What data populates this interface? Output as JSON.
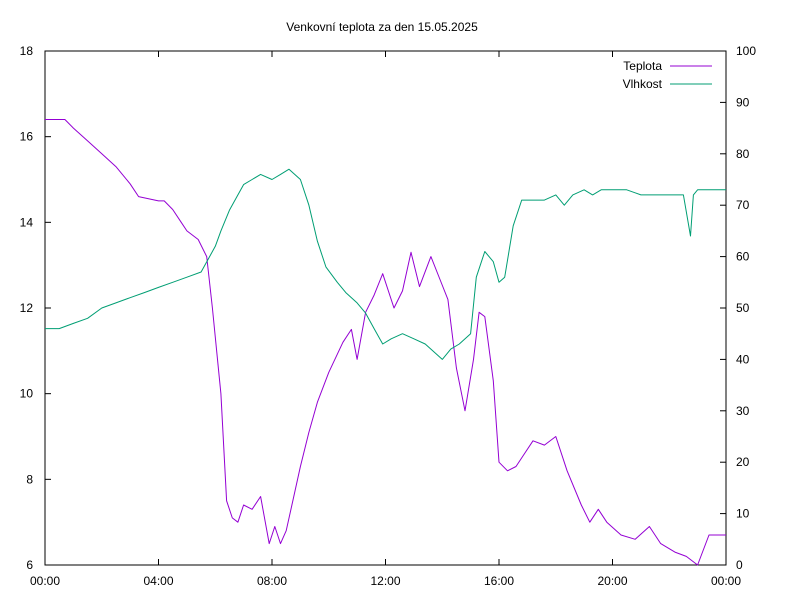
{
  "chart_data": {
    "type": "line",
    "title": "Venkovní teplota za den 15.05.2025",
    "x_tick_labels": [
      "00:00",
      "04:00",
      "08:00",
      "12:00",
      "16:00",
      "20:00",
      "00:00"
    ],
    "x_range_hours": [
      0,
      24
    ],
    "y_left": {
      "range": [
        6,
        18
      ],
      "ticks": [
        6,
        8,
        10,
        12,
        14,
        16,
        18
      ]
    },
    "y_right": {
      "range": [
        0,
        100
      ],
      "ticks": [
        0,
        10,
        20,
        30,
        40,
        50,
        60,
        70,
        80,
        90,
        100
      ]
    },
    "grid": false,
    "legend_position": "top-right",
    "series": [
      {
        "name": "Teplota",
        "axis": "left",
        "color": "#9400d3",
        "x": [
          0,
          0.7,
          1.0,
          1.5,
          2.0,
          2.5,
          3.0,
          3.3,
          4.0,
          4.2,
          4.5,
          4.8,
          5.0,
          5.4,
          5.7,
          5.9,
          6.2,
          6.4,
          6.6,
          6.8,
          7.0,
          7.3,
          7.6,
          7.9,
          8.1,
          8.3,
          8.5,
          8.7,
          9.0,
          9.3,
          9.6,
          10.0,
          10.5,
          10.8,
          11.0,
          11.3,
          11.6,
          11.9,
          12.3,
          12.6,
          12.9,
          13.2,
          13.6,
          13.9,
          14.2,
          14.5,
          14.8,
          15.1,
          15.3,
          15.5,
          15.8,
          16.0,
          16.3,
          16.6,
          16.9,
          17.2,
          17.6,
          18.0,
          18.4,
          18.9,
          19.2,
          19.5,
          19.8,
          20.3,
          20.8,
          21.3,
          21.7,
          22.2,
          22.6,
          23.0,
          23.4,
          24.0
        ],
        "y": [
          16.4,
          16.4,
          16.2,
          15.9,
          15.6,
          15.3,
          14.9,
          14.6,
          14.5,
          14.5,
          14.3,
          14.0,
          13.8,
          13.6,
          13.2,
          12.0,
          10.0,
          7.5,
          7.1,
          7.0,
          7.4,
          7.3,
          7.6,
          6.5,
          6.9,
          6.5,
          6.8,
          7.4,
          8.3,
          9.1,
          9.8,
          10.5,
          11.2,
          11.5,
          10.8,
          11.9,
          12.3,
          12.8,
          12.0,
          12.4,
          13.3,
          12.5,
          13.2,
          12.7,
          12.2,
          10.6,
          9.6,
          10.8,
          11.9,
          11.8,
          10.3,
          8.4,
          8.2,
          8.3,
          8.6,
          8.9,
          8.8,
          9.0,
          8.2,
          7.4,
          7.0,
          7.3,
          7.0,
          6.7,
          6.6,
          6.9,
          6.5,
          6.3,
          6.2,
          6.0,
          6.7,
          6.7
        ]
      },
      {
        "name": "Vlhkost",
        "axis": "right",
        "color": "#009e73",
        "x": [
          0,
          0.5,
          1.0,
          1.5,
          2.0,
          2.5,
          3.0,
          3.5,
          4.0,
          4.5,
          5.0,
          5.5,
          5.8,
          6.0,
          6.2,
          6.5,
          6.8,
          7.0,
          7.3,
          7.6,
          8.0,
          8.3,
          8.6,
          9.0,
          9.3,
          9.6,
          9.9,
          10.3,
          10.6,
          11.0,
          11.3,
          11.6,
          11.9,
          12.2,
          12.6,
          13.0,
          13.4,
          13.8,
          14.0,
          14.3,
          14.6,
          15.0,
          15.2,
          15.5,
          15.8,
          16.0,
          16.2,
          16.5,
          16.8,
          17.2,
          17.6,
          18.0,
          18.3,
          18.6,
          19.0,
          19.3,
          19.6,
          20.0,
          20.5,
          21.0,
          21.5,
          22.0,
          22.5,
          22.75,
          22.85,
          23.0,
          23.3,
          23.6,
          24.0
        ],
        "y": [
          46,
          46,
          47,
          48,
          50,
          51,
          52,
          53,
          54,
          55,
          56,
          57,
          60,
          62,
          65,
          69,
          72,
          74,
          75,
          76,
          75,
          76,
          77,
          75,
          70,
          63,
          58,
          55,
          53,
          51,
          49,
          46,
          43,
          44,
          45,
          44,
          43,
          41,
          40,
          42,
          43,
          45,
          56,
          61,
          59,
          55,
          56,
          66,
          71,
          71,
          71,
          72,
          70,
          72,
          73,
          72,
          73,
          73,
          73,
          72,
          72,
          72,
          72,
          64,
          72,
          73,
          73,
          73,
          73
        ]
      }
    ]
  }
}
